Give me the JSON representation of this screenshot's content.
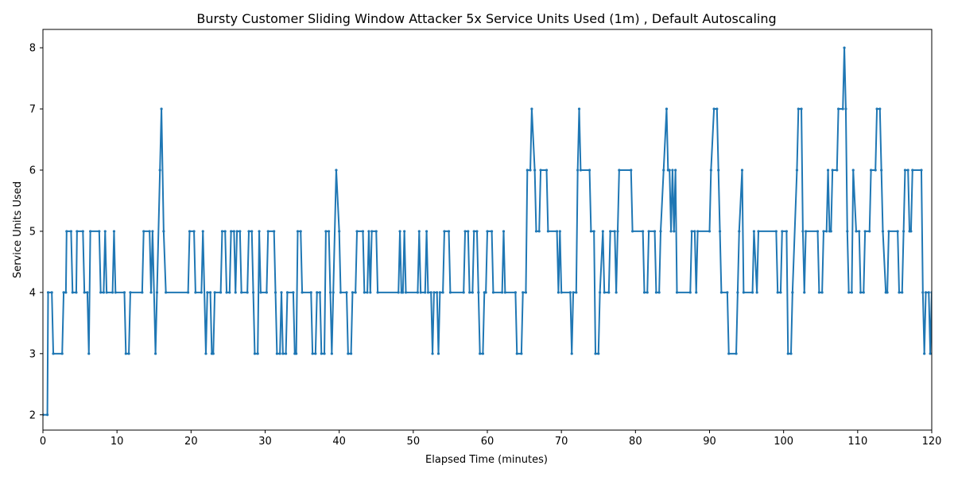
{
  "chart_data": {
    "type": "line",
    "title": "Bursty Customer Sliding Window Attacker 5x Service Units Used (1m) , Default Autoscaling",
    "xlabel": "Elapsed Time (minutes)",
    "ylabel": "Service Units Used",
    "xlim": [
      0,
      120
    ],
    "ylim": [
      1.75,
      8.3
    ],
    "xticks": [
      0,
      10,
      20,
      30,
      40,
      50,
      60,
      70,
      80,
      90,
      100,
      110,
      120
    ],
    "yticks": [
      2,
      3,
      4,
      5,
      6,
      7,
      8
    ],
    "grid": false,
    "series": [
      {
        "color": "#1f77b4",
        "points": [
          [
            0,
            2
          ],
          [
            0.6,
            2
          ],
          [
            0.7,
            4
          ],
          [
            1.2,
            4
          ],
          [
            1.4,
            3
          ],
          [
            2.6,
            3
          ],
          [
            2.8,
            4
          ],
          [
            3.1,
            4
          ],
          [
            3.2,
            5
          ],
          [
            3.8,
            5
          ],
          [
            4.0,
            4
          ],
          [
            4.5,
            4
          ],
          [
            4.6,
            5
          ],
          [
            5.4,
            5
          ],
          [
            5.6,
            4
          ],
          [
            6.0,
            4
          ],
          [
            6.2,
            3
          ],
          [
            6.4,
            5
          ],
          [
            7.6,
            5
          ],
          [
            7.8,
            4
          ],
          [
            8.2,
            4
          ],
          [
            8.4,
            5
          ],
          [
            8.6,
            4
          ],
          [
            9.4,
            4
          ],
          [
            9.6,
            5
          ],
          [
            9.8,
            4
          ],
          [
            11.0,
            4
          ],
          [
            11.2,
            3
          ],
          [
            11.6,
            3
          ],
          [
            11.8,
            4
          ],
          [
            13.4,
            4
          ],
          [
            13.6,
            5
          ],
          [
            14.4,
            5
          ],
          [
            14.6,
            4
          ],
          [
            14.8,
            5
          ],
          [
            15.2,
            3
          ],
          [
            15.4,
            4
          ],
          [
            15.8,
            6
          ],
          [
            16.0,
            7
          ],
          [
            16.3,
            5
          ],
          [
            16.6,
            4
          ],
          [
            19.6,
            4
          ],
          [
            19.8,
            5
          ],
          [
            20.4,
            5
          ],
          [
            20.6,
            4
          ],
          [
            21.4,
            4
          ],
          [
            21.6,
            5
          ],
          [
            22.0,
            3
          ],
          [
            22.2,
            4
          ],
          [
            22.6,
            4
          ],
          [
            22.8,
            3
          ],
          [
            23.0,
            3
          ],
          [
            23.2,
            4
          ],
          [
            24.0,
            4
          ],
          [
            24.2,
            5
          ],
          [
            24.6,
            5
          ],
          [
            24.8,
            4
          ],
          [
            25.2,
            4
          ],
          [
            25.4,
            5
          ],
          [
            25.8,
            5
          ],
          [
            26.0,
            4
          ],
          [
            26.2,
            5
          ],
          [
            26.6,
            5
          ],
          [
            26.8,
            4
          ],
          [
            27.6,
            4
          ],
          [
            27.8,
            5
          ],
          [
            28.2,
            5
          ],
          [
            28.4,
            4
          ],
          [
            28.6,
            3
          ],
          [
            29.0,
            3
          ],
          [
            29.2,
            5
          ],
          [
            29.4,
            4
          ],
          [
            30.2,
            4
          ],
          [
            30.4,
            5
          ],
          [
            31.2,
            5
          ],
          [
            31.4,
            4
          ],
          [
            31.6,
            3
          ],
          [
            32.0,
            3
          ],
          [
            32.2,
            4
          ],
          [
            32.4,
            3
          ],
          [
            32.8,
            3
          ],
          [
            33.0,
            4
          ],
          [
            33.8,
            4
          ],
          [
            34.0,
            3
          ],
          [
            34.2,
            3
          ],
          [
            34.4,
            5
          ],
          [
            34.8,
            5
          ],
          [
            35.0,
            4
          ],
          [
            36.2,
            4
          ],
          [
            36.4,
            3
          ],
          [
            36.8,
            3
          ],
          [
            37.0,
            4
          ],
          [
            37.4,
            4
          ],
          [
            37.6,
            3
          ],
          [
            38.0,
            3
          ],
          [
            38.2,
            5
          ],
          [
            38.6,
            5
          ],
          [
            38.8,
            4
          ],
          [
            39.0,
            3
          ],
          [
            39.2,
            4
          ],
          [
            39.6,
            6
          ],
          [
            40.0,
            5
          ],
          [
            40.2,
            4
          ],
          [
            41.0,
            4
          ],
          [
            41.2,
            3
          ],
          [
            41.6,
            3
          ],
          [
            41.8,
            4
          ],
          [
            42.2,
            4
          ],
          [
            42.4,
            5
          ],
          [
            43.2,
            5
          ],
          [
            43.4,
            4
          ],
          [
            43.8,
            4
          ],
          [
            44.0,
            5
          ],
          [
            44.2,
            4
          ],
          [
            44.4,
            5
          ],
          [
            45.0,
            5
          ],
          [
            45.2,
            4
          ],
          [
            48.0,
            4
          ],
          [
            48.2,
            5
          ],
          [
            48.4,
            4
          ],
          [
            48.6,
            4
          ],
          [
            48.8,
            5
          ],
          [
            49.0,
            4
          ],
          [
            50.6,
            4
          ],
          [
            50.8,
            5
          ],
          [
            51.0,
            4
          ],
          [
            51.6,
            4
          ],
          [
            51.8,
            5
          ],
          [
            52.0,
            4
          ],
          [
            52.4,
            4
          ],
          [
            52.6,
            3
          ],
          [
            52.8,
            4
          ],
          [
            53.2,
            4
          ],
          [
            53.4,
            3
          ],
          [
            53.6,
            4
          ],
          [
            54.0,
            4
          ],
          [
            54.2,
            5
          ],
          [
            54.8,
            5
          ],
          [
            55.0,
            4
          ],
          [
            56.8,
            4
          ],
          [
            57.0,
            5
          ],
          [
            57.4,
            5
          ],
          [
            57.6,
            4
          ],
          [
            58.0,
            4
          ],
          [
            58.2,
            5
          ],
          [
            58.6,
            5
          ],
          [
            58.8,
            4
          ],
          [
            59.0,
            3
          ],
          [
            59.4,
            3
          ],
          [
            59.6,
            4
          ],
          [
            59.8,
            4
          ],
          [
            60.0,
            5
          ],
          [
            60.6,
            5
          ],
          [
            60.8,
            4
          ],
          [
            62.0,
            4
          ],
          [
            62.2,
            5
          ],
          [
            62.4,
            4
          ],
          [
            63.8,
            4
          ],
          [
            64.0,
            3
          ],
          [
            64.6,
            3
          ],
          [
            64.8,
            4
          ],
          [
            65.2,
            4
          ],
          [
            65.4,
            6
          ],
          [
            65.8,
            6
          ],
          [
            66.0,
            7
          ],
          [
            66.4,
            6
          ],
          [
            66.6,
            5
          ],
          [
            67.0,
            5
          ],
          [
            67.2,
            6
          ],
          [
            68.0,
            6
          ],
          [
            68.2,
            5
          ],
          [
            69.4,
            5
          ],
          [
            69.6,
            4
          ],
          [
            69.8,
            5
          ],
          [
            70.0,
            4
          ],
          [
            71.2,
            4
          ],
          [
            71.4,
            3
          ],
          [
            71.6,
            4
          ],
          [
            72.0,
            4
          ],
          [
            72.2,
            6
          ],
          [
            72.4,
            7
          ],
          [
            72.6,
            6
          ],
          [
            73.8,
            6
          ],
          [
            74.0,
            5
          ],
          [
            74.4,
            5
          ],
          [
            74.6,
            3
          ],
          [
            75.0,
            3
          ],
          [
            75.2,
            4
          ],
          [
            75.6,
            5
          ],
          [
            75.8,
            4
          ],
          [
            76.4,
            4
          ],
          [
            76.6,
            5
          ],
          [
            77.2,
            5
          ],
          [
            77.4,
            4
          ],
          [
            77.6,
            5
          ],
          [
            77.8,
            6
          ],
          [
            79.4,
            6
          ],
          [
            79.6,
            5
          ],
          [
            81.0,
            5
          ],
          [
            81.2,
            4
          ],
          [
            81.6,
            4
          ],
          [
            81.8,
            5
          ],
          [
            82.6,
            5
          ],
          [
            82.8,
            4
          ],
          [
            83.2,
            4
          ],
          [
            83.4,
            5
          ],
          [
            83.8,
            6
          ],
          [
            84.2,
            7
          ],
          [
            84.4,
            6
          ],
          [
            84.6,
            6
          ],
          [
            84.8,
            5
          ],
          [
            85.0,
            6
          ],
          [
            85.2,
            5
          ],
          [
            85.4,
            6
          ],
          [
            85.6,
            4
          ],
          [
            87.4,
            4
          ],
          [
            87.6,
            5
          ],
          [
            88.0,
            5
          ],
          [
            88.2,
            4
          ],
          [
            88.4,
            5
          ],
          [
            90.0,
            5
          ],
          [
            90.2,
            6
          ],
          [
            90.6,
            7
          ],
          [
            91.0,
            7
          ],
          [
            91.2,
            6
          ],
          [
            91.4,
            5
          ],
          [
            91.6,
            4
          ],
          [
            92.4,
            4
          ],
          [
            92.6,
            3
          ],
          [
            93.6,
            3
          ],
          [
            93.8,
            4
          ],
          [
            94.0,
            5
          ],
          [
            94.4,
            6
          ],
          [
            94.6,
            4
          ],
          [
            95.8,
            4
          ],
          [
            96.0,
            5
          ],
          [
            96.4,
            4
          ],
          [
            96.6,
            5
          ],
          [
            99.0,
            5
          ],
          [
            99.2,
            4
          ],
          [
            99.6,
            4
          ],
          [
            99.8,
            5
          ],
          [
            100.4,
            5
          ],
          [
            100.6,
            3
          ],
          [
            101.0,
            3
          ],
          [
            101.2,
            4
          ],
          [
            101.8,
            6
          ],
          [
            102.0,
            7
          ],
          [
            102.4,
            7
          ],
          [
            102.6,
            5
          ],
          [
            102.8,
            4
          ],
          [
            103.0,
            5
          ],
          [
            104.6,
            5
          ],
          [
            104.8,
            4
          ],
          [
            105.2,
            4
          ],
          [
            105.4,
            5
          ],
          [
            105.8,
            5
          ],
          [
            106.0,
            6
          ],
          [
            106.2,
            5
          ],
          [
            106.4,
            5
          ],
          [
            106.6,
            6
          ],
          [
            107.2,
            6
          ],
          [
            107.4,
            7
          ],
          [
            108.0,
            7
          ],
          [
            108.2,
            8
          ],
          [
            108.4,
            7
          ],
          [
            108.6,
            5
          ],
          [
            108.8,
            4
          ],
          [
            109.2,
            4
          ],
          [
            109.4,
            6
          ],
          [
            109.8,
            5
          ],
          [
            110.2,
            5
          ],
          [
            110.4,
            4
          ],
          [
            110.8,
            4
          ],
          [
            111.0,
            5
          ],
          [
            111.6,
            5
          ],
          [
            111.8,
            6
          ],
          [
            112.4,
            6
          ],
          [
            112.6,
            7
          ],
          [
            113.0,
            7
          ],
          [
            113.2,
            6
          ],
          [
            113.4,
            5
          ],
          [
            113.8,
            4
          ],
          [
            114.0,
            4
          ],
          [
            114.2,
            5
          ],
          [
            115.4,
            5
          ],
          [
            115.6,
            4
          ],
          [
            116.0,
            4
          ],
          [
            116.2,
            5
          ],
          [
            116.4,
            6
          ],
          [
            116.8,
            6
          ],
          [
            117.0,
            5
          ],
          [
            117.2,
            5
          ],
          [
            117.4,
            6
          ],
          [
            118.6,
            6
          ],
          [
            118.8,
            4
          ],
          [
            119.0,
            3
          ],
          [
            119.2,
            4
          ],
          [
            119.6,
            4
          ],
          [
            119.8,
            3
          ],
          [
            120,
            4
          ]
        ]
      }
    ]
  }
}
